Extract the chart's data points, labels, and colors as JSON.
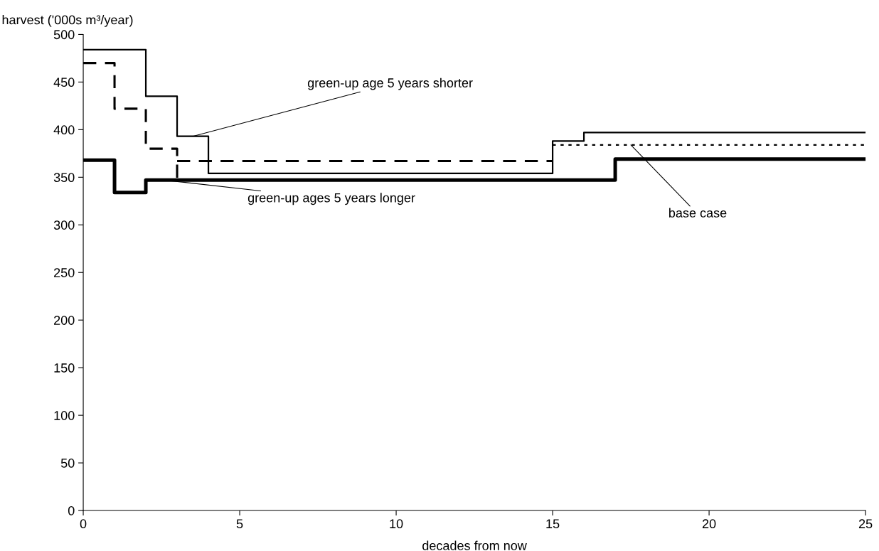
{
  "chart_data": {
    "type": "step",
    "xlabel": "decades from now",
    "ylabel": "harvest ('000s m³/year)",
    "xlim": [
      0,
      25
    ],
    "ylim": [
      0,
      500
    ],
    "xticks": [
      0,
      5,
      10,
      15,
      20,
      25
    ],
    "yticks": [
      0,
      50,
      100,
      150,
      200,
      250,
      300,
      350,
      400,
      450,
      500
    ],
    "grid": false,
    "legend": false,
    "series": [
      {
        "color": "#000000",
        "line_style": "solid",
        "x": [
          0,
          2,
          3,
          4,
          15,
          16,
          25
        ],
        "values": [
          484,
          435,
          393,
          354,
          388,
          397,
          397
        ]
      },
      {
        "color": "#000000",
        "line_style": "dashed",
        "x": [
          0,
          1,
          2,
          3
        ],
        "values": [
          470,
          422,
          380,
          347
        ]
      },
      {
        "color": "#000000",
        "line_style": "dashed",
        "x": [
          3,
          15
        ],
        "values": [
          367,
          367
        ]
      },
      {
        "color": "#000000",
        "line_style": "dotted",
        "x": [
          15,
          25
        ],
        "values": [
          384,
          384
        ]
      },
      {
        "color": "#000000",
        "line_style": "solid",
        "x": [
          0,
          1,
          2,
          17,
          25
        ],
        "values": [
          368,
          334,
          347,
          369,
          369
        ]
      }
    ],
    "annotations": [
      {
        "text": "green-up age 5 years shorter",
        "x": 3.5,
        "y": 393
      },
      {
        "text": "green-up ages 5 years longer",
        "x": 2.6,
        "y": 347
      },
      {
        "text": "base case",
        "x": 17.5,
        "y": 384
      }
    ]
  }
}
